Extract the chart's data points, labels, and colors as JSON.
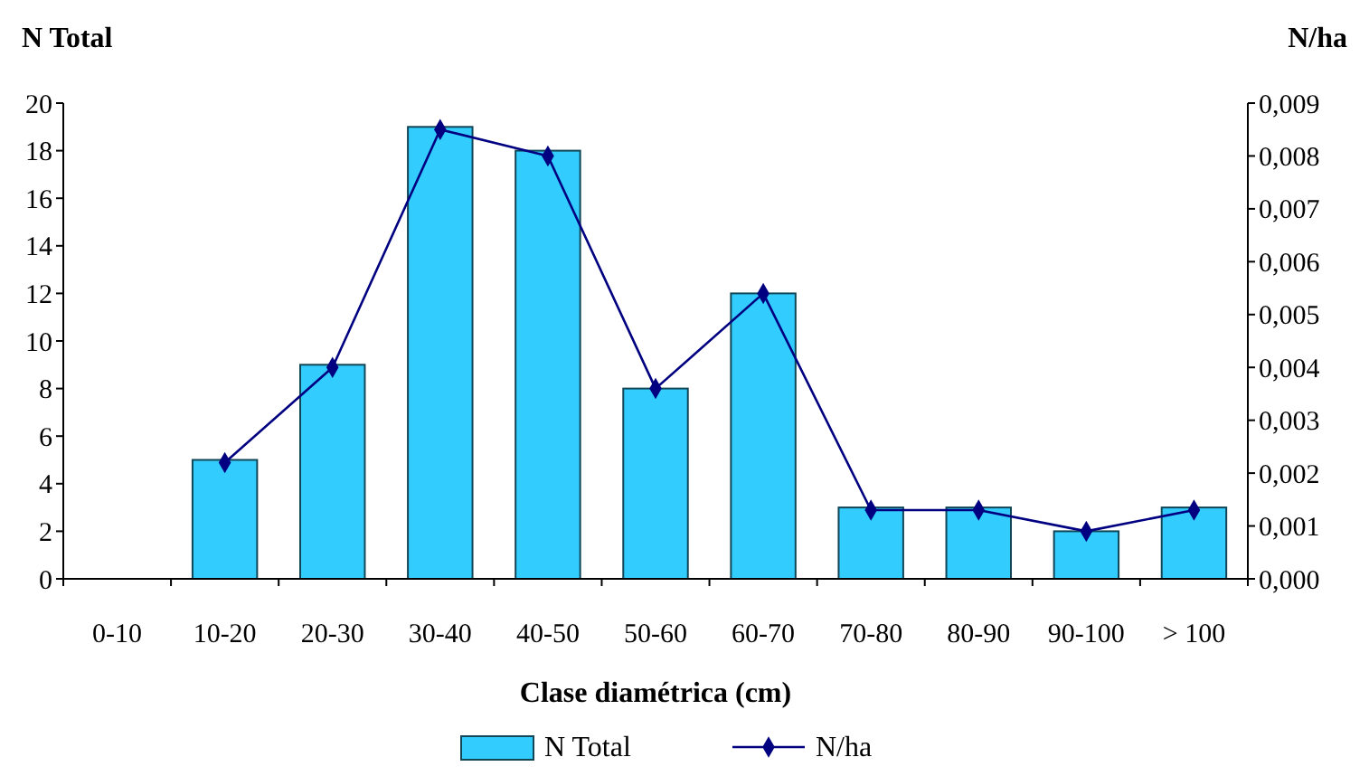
{
  "chart_data": {
    "type": "bar",
    "xlabel": "Clase diamétrica (cm)",
    "ylabel": "N Total",
    "y2label": "N/ha",
    "categories": [
      "0-10",
      "10-20",
      "20-30",
      "30-40",
      "40-50",
      "50-60",
      "60-70",
      "70-80",
      "80-90",
      "90-100",
      "> 100"
    ],
    "series": [
      {
        "name": "N Total",
        "color": "#33ccff",
        "values": [
          0,
          5,
          9,
          19,
          18,
          8,
          12,
          3,
          3,
          2,
          3
        ]
      },
      {
        "name": "N/ha",
        "type": "line",
        "axis": "y2",
        "color": "#000080",
        "values": [
          null,
          0.0022,
          0.004,
          0.0085,
          0.008,
          0.0036,
          0.0054,
          0.0013,
          0.0013,
          0.0009,
          0.0013
        ]
      }
    ],
    "ylim": [
      0,
      20
    ],
    "yticks": [
      0,
      2,
      4,
      6,
      8,
      10,
      12,
      14,
      16,
      18,
      20
    ],
    "y2lim": [
      0,
      0.009
    ],
    "y2ticks": [
      {
        "value": 0,
        "label": "0,000"
      },
      {
        "value": 0.001,
        "label": "0,001"
      },
      {
        "value": 0.002,
        "label": "0,002"
      },
      {
        "value": 0.003,
        "label": "0,003"
      },
      {
        "value": 0.004,
        "label": "0,004"
      },
      {
        "value": 0.005,
        "label": "0,005"
      },
      {
        "value": 0.006,
        "label": "0,006"
      },
      {
        "value": 0.007,
        "label": "0,007"
      },
      {
        "value": 0.008,
        "label": "0,008"
      },
      {
        "value": 0.009,
        "label": "0,009"
      }
    ],
    "marker": "diamond",
    "line_style": "solid",
    "legend": "bottom",
    "grid": false
  }
}
